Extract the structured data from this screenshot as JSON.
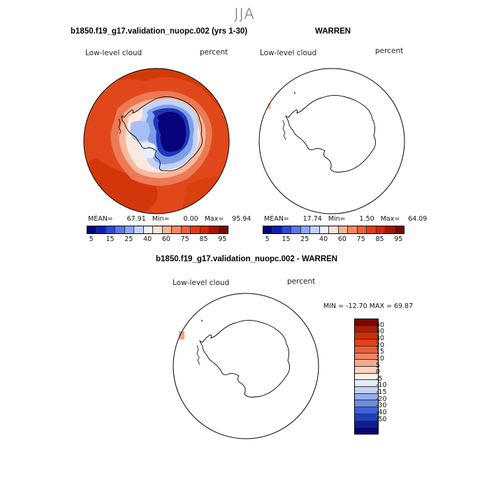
{
  "figure": {
    "season": "JJA",
    "variable": "Low-level cloud",
    "units": "percent"
  },
  "panel_model": {
    "title": "b1850.f19_g17.validation_nuopc.002 (yrs 1-30)",
    "label": "Low-level cloud",
    "units": "percent",
    "stats": {
      "mean": "67.91",
      "min": "0.00",
      "max": "95.94"
    },
    "mean_label": "MEAN=",
    "min_label": "Min=",
    "max_label": "Max="
  },
  "panel_obs": {
    "title": "WARREN",
    "label": "Low-level cloud",
    "units": "percent",
    "stats": {
      "mean": "17.74",
      "min": "1.50",
      "max": "64.09"
    },
    "mean_label": "MEAN=",
    "min_label": "Min=",
    "max_label": "Max="
  },
  "panel_diff": {
    "title": "b1850.f19_g17.validation_nuopc.002 - WARREN",
    "label": "Low-level cloud",
    "units": "percent",
    "minmax": "MIN = -12.70 MAX =  69.87"
  },
  "colorbar_abs": {
    "tick_labels": [
      "5",
      "15",
      "25",
      "40",
      "60",
      "75",
      "85",
      "95"
    ],
    "colors": [
      "#08007a",
      "#0a20b8",
      "#2c48d8",
      "#5b79e6",
      "#8fa8f0",
      "#c2d2f7",
      "#eef2fb",
      "#fbe0d4",
      "#f5b597",
      "#ef8a66",
      "#e9603e",
      "#e23d16",
      "#cf2a04",
      "#a81500",
      "#7a0800"
    ]
  },
  "colorbar_diff": {
    "labels": [
      "50",
      "40",
      "30",
      "20",
      "15",
      "10",
      "5",
      "0",
      "-5",
      "-10",
      "-15",
      "-20",
      "-30",
      "-40",
      "-50"
    ],
    "colors": [
      "#7a0800",
      "#b01a00",
      "#d12c04",
      "#e2401a",
      "#ea5c38",
      "#f08562",
      "#f5ab8c",
      "#fbd2bd",
      "#fdf0e8",
      "#e3ebfa",
      "#c2d2f7",
      "#95aeee",
      "#6b8be6",
      "#3f62db",
      "#1f3ec6",
      "#0a1d9a",
      "#06056f"
    ]
  }
}
